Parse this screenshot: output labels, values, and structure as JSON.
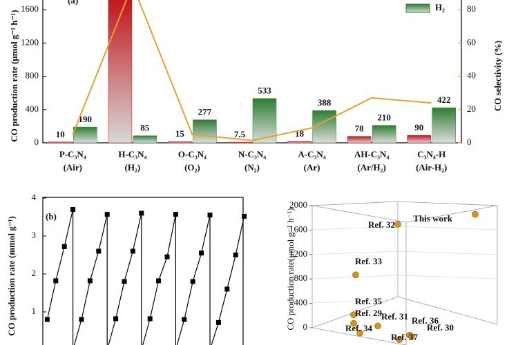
{
  "chart_data": [
    {
      "type": "bar_line",
      "panel": "(a)",
      "categories": [
        "P-C₃N₄",
        "H-C₃N₄",
        "O-C₃N₄",
        "N-C₃N₄",
        "A-C₃N₄",
        "AH-C₃N₄",
        "C₃N₄-H"
      ],
      "category_conditions": [
        "(Air)",
        "(H₂)",
        "(O₂)",
        "(N₂)",
        "(Ar)",
        "(Ar/H₂)",
        "(Air-H₂)"
      ],
      "series": [
        {
          "name": "CO",
          "color": "#c0141a",
          "values": [
            10,
            1750,
            15,
            7.5,
            18,
            78,
            90
          ],
          "value_labels": [
            "10",
            null,
            "15",
            "7.5",
            "18",
            "78",
            "90"
          ]
        },
        {
          "name": "H₂",
          "color": "#2e7d32",
          "values": [
            190,
            85,
            277,
            533,
            388,
            210,
            422
          ]
        },
        {
          "axis": "y2",
          "color": "#e8a030",
          "values": [
            5,
            95,
            5,
            1.4,
            9,
            27,
            24
          ]
        }
      ],
      "y_label": "CO production rate (μmol g⁻¹ h⁻¹)",
      "y2_label": "CO selectivity (%)",
      "ylim": [
        0,
        1800
      ],
      "yticks": [
        0,
        400,
        800,
        1200,
        1600
      ],
      "y2lim": [
        0,
        90
      ],
      "y2ticks": [
        0,
        20,
        40,
        60,
        80
      ]
    },
    {
      "type": "line",
      "panel": "(b)",
      "x": [
        1,
        2,
        3,
        4,
        4,
        5,
        6,
        7,
        8,
        8,
        9,
        10,
        11,
        12,
        12,
        13,
        14,
        15,
        16,
        16,
        17,
        18,
        19,
        20,
        20,
        21,
        22,
        23,
        24
      ],
      "series": [
        {
          "color": "#000000",
          "marker": "square",
          "values": [
            0.8,
            1.82,
            2.72,
            3.7,
            0,
            0.8,
            1.82,
            2.6,
            3.57,
            0,
            0.82,
            1.8,
            2.6,
            3.6,
            0,
            0.82,
            1.82,
            2.45,
            3.57,
            0,
            0.8,
            1.8,
            2.55,
            3.55,
            0,
            0.72,
            1.6,
            2.5,
            3.52
          ]
        }
      ],
      "y_label": "CO production rate (mmol g⁻¹)",
      "xlim": [
        0.48,
        24.2
      ],
      "ylim": [
        0,
        4
      ],
      "yticks": [
        0,
        1,
        2,
        3,
        4
      ]
    },
    {
      "type": "scatter3d",
      "z_label": "CO production rate(μmol g⁻¹ h⁻¹)",
      "zlim": [
        0,
        2000
      ],
      "zticks": [
        0,
        400,
        800,
        1200,
        1600,
        2000
      ],
      "series": [
        {
          "color": "#d4921e",
          "names": [
            "This work",
            "Ref. 32",
            "Ref. 33",
            "Ref. 35",
            "Ref. 29",
            "Ref. 31",
            "Ref. 36",
            "Ref. 30",
            "Ref. 34",
            "Ref. 37"
          ],
          "label_colors": [
            "#a01010",
            "#c8841a",
            "#c8841a",
            "#c8841a",
            "#c8841a",
            "#c8841a",
            "#c8841a",
            "#c8841a",
            "#c8841a",
            "#c8841a"
          ],
          "values": [
            1800,
            1650,
            900,
            280,
            150,
            120,
            60,
            40,
            50,
            20
          ]
        }
      ]
    }
  ]
}
